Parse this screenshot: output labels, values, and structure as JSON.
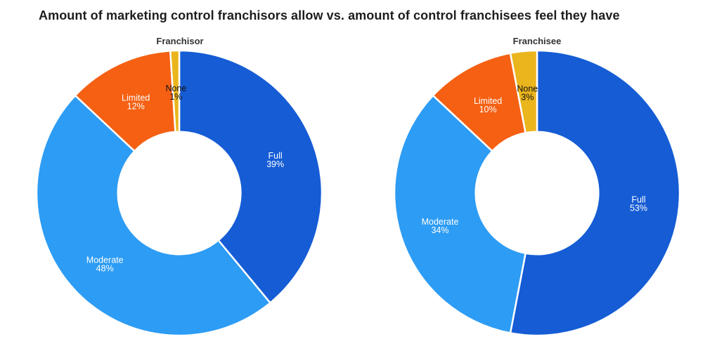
{
  "title": {
    "text": "Amount of marketing control franchisors allow vs. amount of control franchisees feel they have",
    "color": "#1d1d1f"
  },
  "chart_data": [
    {
      "type": "pie",
      "subtype": "donut",
      "title": "Franchisor",
      "labels": [
        "Full",
        "Moderate",
        "Limited",
        "None"
      ],
      "values": [
        39,
        48,
        12,
        1
      ],
      "unit": "%",
      "colors": [
        "#155CD5",
        "#2D9CF4",
        "#F56013",
        "#EAB51D"
      ],
      "label_text_colors": [
        "#FFFFFF",
        "#FFFFFF",
        "#FFFFFF",
        "#111111"
      ],
      "start_angle_deg": 0,
      "direction": "clockwise",
      "inner_radius_ratio": 0.43,
      "slice_gap_color": "#FFFFFF",
      "legend": "none"
    },
    {
      "type": "pie",
      "subtype": "donut",
      "title": "Franchisee",
      "labels": [
        "Full",
        "Moderate",
        "Limited",
        "None"
      ],
      "values": [
        53,
        34,
        10,
        3
      ],
      "unit": "%",
      "colors": [
        "#155CD5",
        "#2D9CF4",
        "#F56013",
        "#EAB51D"
      ],
      "label_text_colors": [
        "#FFFFFF",
        "#FFFFFF",
        "#FFFFFF",
        "#111111"
      ],
      "start_angle_deg": 0,
      "direction": "clockwise",
      "inner_radius_ratio": 0.43,
      "slice_gap_color": "#FFFFFF",
      "legend": "none"
    }
  ]
}
